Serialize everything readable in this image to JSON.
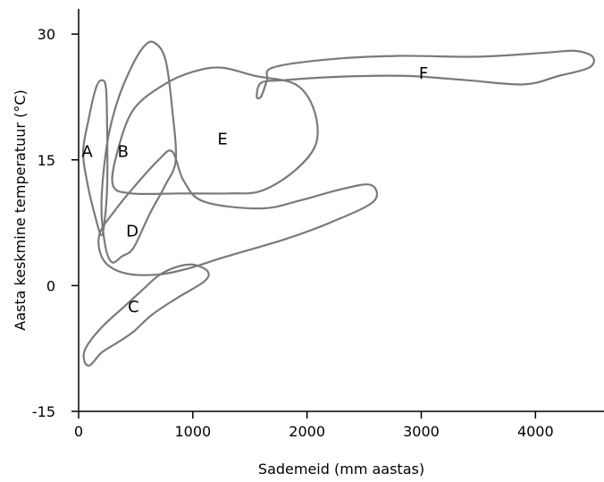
{
  "chart_data": {
    "type": "scatter",
    "title": "",
    "xlabel": "Sademeid (mm aastas)",
    "ylabel": "Aasta keskmine temperatuur (°C)",
    "xlim": [
      0,
      4600
    ],
    "ylim": [
      -15,
      33
    ],
    "xticks": [
      0,
      1000,
      2000,
      3000,
      4000
    ],
    "yticks": [
      30,
      15,
      0,
      -15
    ],
    "grid": false,
    "legend": "none",
    "regions": [
      {
        "name": "A",
        "label_at": [
          75,
          16
        ],
        "outline": [
          [
            200,
            24.5
          ],
          [
            240,
            23.5
          ],
          [
            250,
            18
          ],
          [
            250,
            12
          ],
          [
            230,
            8
          ],
          [
            200,
            6
          ],
          [
            150,
            8
          ],
          [
            80,
            12
          ],
          [
            40,
            16
          ],
          [
            90,
            20
          ],
          [
            150,
            23.5
          ]
        ]
      },
      {
        "name": "B",
        "label_at": [
          390,
          16
        ],
        "outline": [
          [
            660,
            29
          ],
          [
            760,
            27
          ],
          [
            820,
            21
          ],
          [
            850,
            15
          ],
          [
            760,
            12
          ],
          [
            620,
            8.5
          ],
          [
            480,
            4.5
          ],
          [
            380,
            3.5
          ],
          [
            290,
            2.8
          ],
          [
            230,
            5
          ],
          [
            200,
            10
          ],
          [
            250,
            17
          ],
          [
            340,
            22
          ],
          [
            460,
            26
          ],
          [
            570,
            28.5
          ]
        ]
      },
      {
        "name": "C",
        "label_at": [
          480,
          -2.5
        ],
        "outline": [
          [
            1000,
            2.5
          ],
          [
            1130,
            1.7
          ],
          [
            1100,
            0.5
          ],
          [
            860,
            -1.5
          ],
          [
            640,
            -3.5
          ],
          [
            480,
            -5.5
          ],
          [
            340,
            -6.8
          ],
          [
            200,
            -8
          ],
          [
            100,
            -9.5
          ],
          [
            50,
            -9
          ],
          [
            60,
            -7.5
          ],
          [
            200,
            -5
          ],
          [
            400,
            -2.5
          ],
          [
            560,
            -0.5
          ],
          [
            700,
            1.2
          ],
          [
            850,
            2.2
          ]
        ]
      },
      {
        "name": "D",
        "label_at": [
          470,
          6.5
        ],
        "outline": [
          [
            820,
            16
          ],
          [
            920,
            12.5
          ],
          [
            1100,
            10
          ],
          [
            1600,
            9.2
          ],
          [
            1950,
            10.2
          ],
          [
            2300,
            11.5
          ],
          [
            2560,
            12
          ],
          [
            2580,
            10
          ],
          [
            2200,
            7.5
          ],
          [
            1800,
            5.5
          ],
          [
            1300,
            3.5
          ],
          [
            950,
            2
          ],
          [
            680,
            1.3
          ],
          [
            400,
            1.5
          ],
          [
            220,
            3
          ],
          [
            180,
            6
          ],
          [
            320,
            9
          ],
          [
            500,
            12
          ],
          [
            700,
            15
          ]
        ]
      },
      {
        "name": "E",
        "label_at": [
          1260,
          17.5
        ],
        "outline": [
          [
            1250,
            26
          ],
          [
            1550,
            25
          ],
          [
            1900,
            24
          ],
          [
            2060,
            21
          ],
          [
            2080,
            17
          ],
          [
            1900,
            13.8
          ],
          [
            1600,
            11.3
          ],
          [
            1300,
            11
          ],
          [
            900,
            11
          ],
          [
            460,
            11
          ],
          [
            300,
            12
          ],
          [
            340,
            16
          ],
          [
            480,
            21
          ],
          [
            750,
            24
          ],
          [
            1000,
            25.5
          ]
        ]
      },
      {
        "name": "F",
        "label_at": [
          3020,
          25.3
        ],
        "outline": [
          [
            1700,
            26
          ],
          [
            2200,
            27
          ],
          [
            2800,
            27.4
          ],
          [
            3500,
            27.3
          ],
          [
            4100,
            27.8
          ],
          [
            4350,
            28
          ],
          [
            4500,
            27.3
          ],
          [
            4470,
            26
          ],
          [
            4200,
            25
          ],
          [
            3900,
            24
          ],
          [
            3400,
            24.5
          ],
          [
            2900,
            25
          ],
          [
            2500,
            25
          ],
          [
            2100,
            24.8
          ],
          [
            1800,
            24.5
          ],
          [
            1600,
            24.2
          ],
          [
            1560,
            22.5
          ],
          [
            1600,
            22.6
          ],
          [
            1650,
            24.5
          ]
        ]
      }
    ]
  }
}
